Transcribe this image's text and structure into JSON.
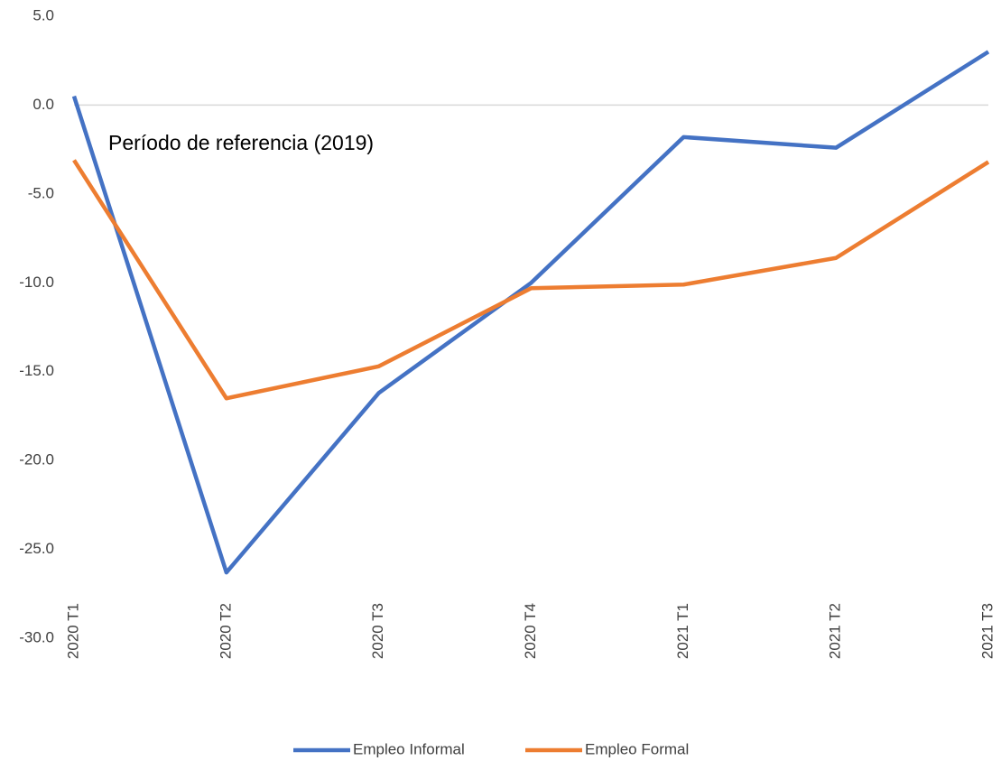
{
  "chart_data": {
    "type": "line",
    "annotation": "Período de referencia (2019)",
    "categories": [
      "2020 T1",
      "2020 T2",
      "2020 T3",
      "2020 T4",
      "2021 T1",
      "2021 T2",
      "2021 T3"
    ],
    "series": [
      {
        "name": "Empleo Informal",
        "color": "#4472c4",
        "values": [
          0.5,
          -26.3,
          -16.2,
          -10.0,
          -1.8,
          -2.4,
          3.0
        ]
      },
      {
        "name": "Empleo Formal",
        "color": "#ed7d31",
        "values": [
          -3.1,
          -16.5,
          -14.7,
          -10.3,
          -10.1,
          -8.6,
          -3.2
        ]
      }
    ],
    "ylim": [
      -30,
      5
    ],
    "yticks": [
      {
        "value": 5,
        "label": "5.0"
      },
      {
        "value": 0,
        "label": "0.0"
      },
      {
        "value": -5,
        "label": "-5.0"
      },
      {
        "value": -10,
        "label": "-10.0"
      },
      {
        "value": -15,
        "label": "-15.0"
      },
      {
        "value": -20,
        "label": "-20.0"
      },
      {
        "value": -25,
        "label": "-25.0"
      },
      {
        "value": -30,
        "label": "-30.0"
      }
    ],
    "legend": "bottom"
  }
}
